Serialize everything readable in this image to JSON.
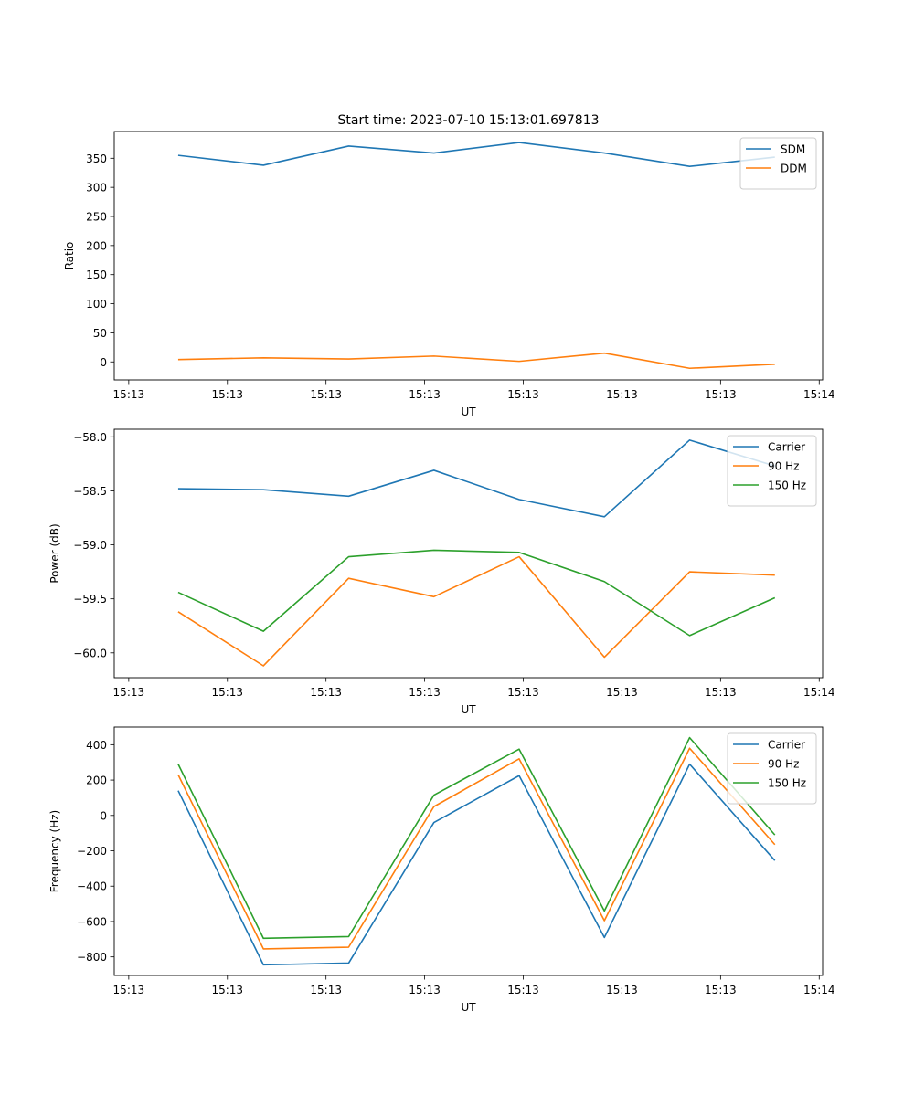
{
  "figure": {
    "title": "Start time: 2023-07-10 15:13:01.697813"
  },
  "chart_data": [
    {
      "type": "line",
      "title": "Start time: 2023-07-10 15:13:01.697813",
      "xlabel": "UT",
      "ylabel": "Ratio",
      "x_ticks": [
        "15:13",
        "15:13",
        "15:13",
        "15:13",
        "15:13",
        "15:13",
        "15:13"
      ],
      "x_end_tick": "15:14",
      "yticks": [
        0,
        50,
        100,
        150,
        200,
        250,
        300,
        350
      ],
      "ylim": [
        -31,
        396
      ],
      "x": [
        1,
        2,
        3,
        4,
        5,
        6,
        7,
        8
      ],
      "xlim": [
        0.25,
        8.56
      ],
      "legend": "top-right",
      "series": [
        {
          "name": "SDM",
          "color": "#1f77b4",
          "values": [
            355,
            338,
            371,
            359,
            377,
            359,
            336,
            352
          ]
        },
        {
          "name": "DDM",
          "color": "#ff7f0e",
          "values": [
            4,
            7,
            5,
            10,
            1,
            15,
            -11,
            -4
          ]
        }
      ]
    },
    {
      "type": "line",
      "xlabel": "UT",
      "ylabel": "Power (dB)",
      "x_ticks": [
        "15:13",
        "15:13",
        "15:13",
        "15:13",
        "15:13",
        "15:13",
        "15:13"
      ],
      "x_end_tick": "15:14",
      "yticks": [
        -60.0,
        -59.5,
        -59.0,
        -58.5,
        -58.0
      ],
      "ylim": [
        -60.23,
        -57.93
      ],
      "x": [
        1,
        2,
        3,
        4,
        5,
        6,
        7,
        8
      ],
      "xlim": [
        0.25,
        8.56
      ],
      "legend": "top-right",
      "series": [
        {
          "name": "Carrier",
          "color": "#1f77b4",
          "values": [
            -58.48,
            -58.49,
            -58.55,
            -58.31,
            -58.58,
            -58.74,
            -58.03,
            -58.27
          ]
        },
        {
          "name": "90 Hz",
          "color": "#ff7f0e",
          "values": [
            -59.62,
            -60.12,
            -59.31,
            -59.48,
            -59.11,
            -60.04,
            -59.25,
            -59.28
          ]
        },
        {
          "name": "150 Hz",
          "color": "#2ca02c",
          "values": [
            -59.44,
            -59.8,
            -59.11,
            -59.05,
            -59.07,
            -59.34,
            -59.84,
            -59.49
          ]
        }
      ]
    },
    {
      "type": "line",
      "xlabel": "UT",
      "ylabel": "Frequency (Hz)",
      "x_ticks": [
        "15:13",
        "15:13",
        "15:13",
        "15:13",
        "15:13",
        "15:13",
        "15:13"
      ],
      "x_end_tick": "15:14",
      "yticks": [
        -800,
        -600,
        -400,
        -200,
        0,
        200,
        400
      ],
      "ylim": [
        -905,
        500
      ],
      "x": [
        1,
        2,
        3,
        4,
        5,
        6,
        7,
        8
      ],
      "xlim": [
        0.25,
        8.56
      ],
      "legend": "top-right",
      "series": [
        {
          "name": "Carrier",
          "color": "#1f77b4",
          "values": [
            140,
            -845,
            -835,
            -40,
            225,
            -690,
            290,
            -255
          ]
        },
        {
          "name": "90 Hz",
          "color": "#ff7f0e",
          "values": [
            230,
            -755,
            -745,
            50,
            320,
            -595,
            380,
            -165
          ]
        },
        {
          "name": "150 Hz",
          "color": "#2ca02c",
          "values": [
            290,
            -695,
            -685,
            115,
            375,
            -540,
            440,
            -110
          ]
        }
      ]
    }
  ]
}
